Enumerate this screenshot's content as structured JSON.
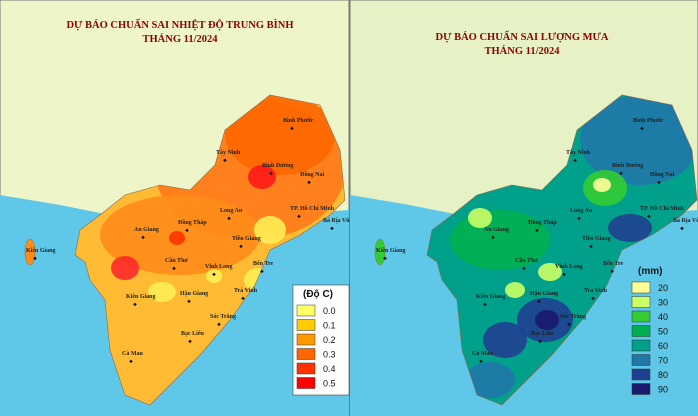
{
  "maps": [
    {
      "title": "DỰ BÁO CHUẨN SAI NHIỆT ĐỘ TRUNG BÌNH",
      "subtitle": "THÁNG 11/2024",
      "places": [
        "Bình Phước",
        "Tây Ninh",
        "Bình Dương",
        "Đồng Nai",
        "Long An",
        "TP. Hồ Chí Minh",
        "Bà Rịa Vũng Tàu",
        "An Giang",
        "Đồng Tháp",
        "Tiền Giang",
        "Kiên Giang",
        "Cần Thơ",
        "Vĩnh Long",
        "Bến Tre",
        "Kiên Giang",
        "Hậu Giang",
        "Trà Vinh",
        "Sóc Trăng",
        "Bạc Liêu",
        "Cà Mau"
      ],
      "legend": {
        "title": "(Độ C)",
        "items": [
          {
            "label": "0.0",
            "color": "#ffff66"
          },
          {
            "label": "0.1",
            "color": "#ffcc00"
          },
          {
            "label": "0.2",
            "color": "#ff9900"
          },
          {
            "label": "0.3",
            "color": "#ff6600"
          },
          {
            "label": "0.4",
            "color": "#ff3300"
          },
          {
            "label": "0.5",
            "color": "#ff0000"
          }
        ]
      }
    },
    {
      "title": "DỰ BÁO CHUẨN SAI LƯỢNG MƯA",
      "subtitle": "THÁNG 11/2024",
      "places": [
        "Bình Phước",
        "Tây Ninh",
        "Bình Dương",
        "Đồng Nai",
        "Long An",
        "TP. Hồ Chí Minh",
        "Bà Rịa Vũng Tàu",
        "An Giang",
        "Đồng Tháp",
        "Tiền Giang",
        "Kiên Giang",
        "Cần Thơ",
        "Vĩnh Long",
        "Bến Tre",
        "Kiên Giang",
        "Hậu Giang",
        "Trà Vinh",
        "Sóc Trăng",
        "Bạc Liêu",
        "Cà Mau"
      ],
      "legend": {
        "title": "(mm)",
        "items": [
          {
            "label": "20",
            "color": "#ffff99"
          },
          {
            "label": "30",
            "color": "#ccff66"
          },
          {
            "label": "40",
            "color": "#33cc33"
          },
          {
            "label": "50",
            "color": "#00b050"
          },
          {
            "label": "60",
            "color": "#00a08a"
          },
          {
            "label": "70",
            "color": "#1f78a8"
          },
          {
            "label": "80",
            "color": "#1f3f8f"
          },
          {
            "label": "90",
            "color": "#1a1a6e"
          }
        ]
      }
    }
  ]
}
